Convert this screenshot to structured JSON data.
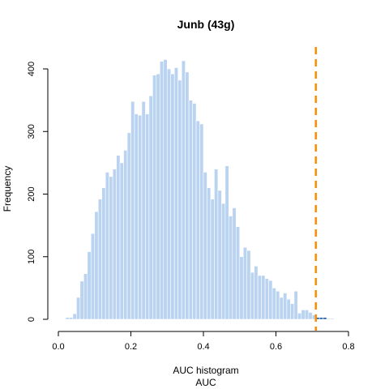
{
  "chart_data": {
    "type": "bar",
    "title": "Junb (43g)",
    "xlabel": "AUC histogram",
    "xlabel_sub": "AUC",
    "ylabel": "Frequency",
    "xlim": [
      0.0,
      0.8
    ],
    "ylim": [
      0,
      420
    ],
    "x_ticks": [
      0.0,
      0.2,
      0.4,
      0.6,
      0.8
    ],
    "x_tick_labels": [
      "0.0",
      "0.2",
      "0.4",
      "0.6",
      "0.8"
    ],
    "y_ticks": [
      0,
      100,
      200,
      300,
      400
    ],
    "y_tick_labels": [
      "0",
      "100",
      "200",
      "300",
      "400"
    ],
    "bin_start": 0.02,
    "bin_width": 0.01,
    "threshold": 0.71,
    "colors": {
      "below_threshold": "#b9d3f1",
      "above_threshold": "#1f5ea8",
      "threshold_line": "#ff8c00",
      "bar_border": "#ffffff"
    },
    "grid": false,
    "legend": "none",
    "series": [
      {
        "values": [
          3,
          3,
          9,
          35,
          61,
          73,
          108,
          137,
          172,
          192,
          210,
          235,
          228,
          240,
          262,
          250,
          270,
          298,
          348,
          328,
          326,
          348,
          328,
          357,
          390,
          392,
          412,
          415,
          400,
          392,
          402,
          382,
          413,
          395,
          350,
          345,
          317,
          312,
          235,
          210,
          192,
          240,
          206,
          185,
          245,
          165,
          178,
          148,
          100,
          115,
          110,
          75,
          85,
          70,
          70,
          65,
          62,
          50,
          45,
          35,
          42,
          32,
          25,
          45,
          10,
          15,
          15,
          11,
          7,
          3,
          3,
          3,
          1,
          1
        ]
      }
    ]
  }
}
